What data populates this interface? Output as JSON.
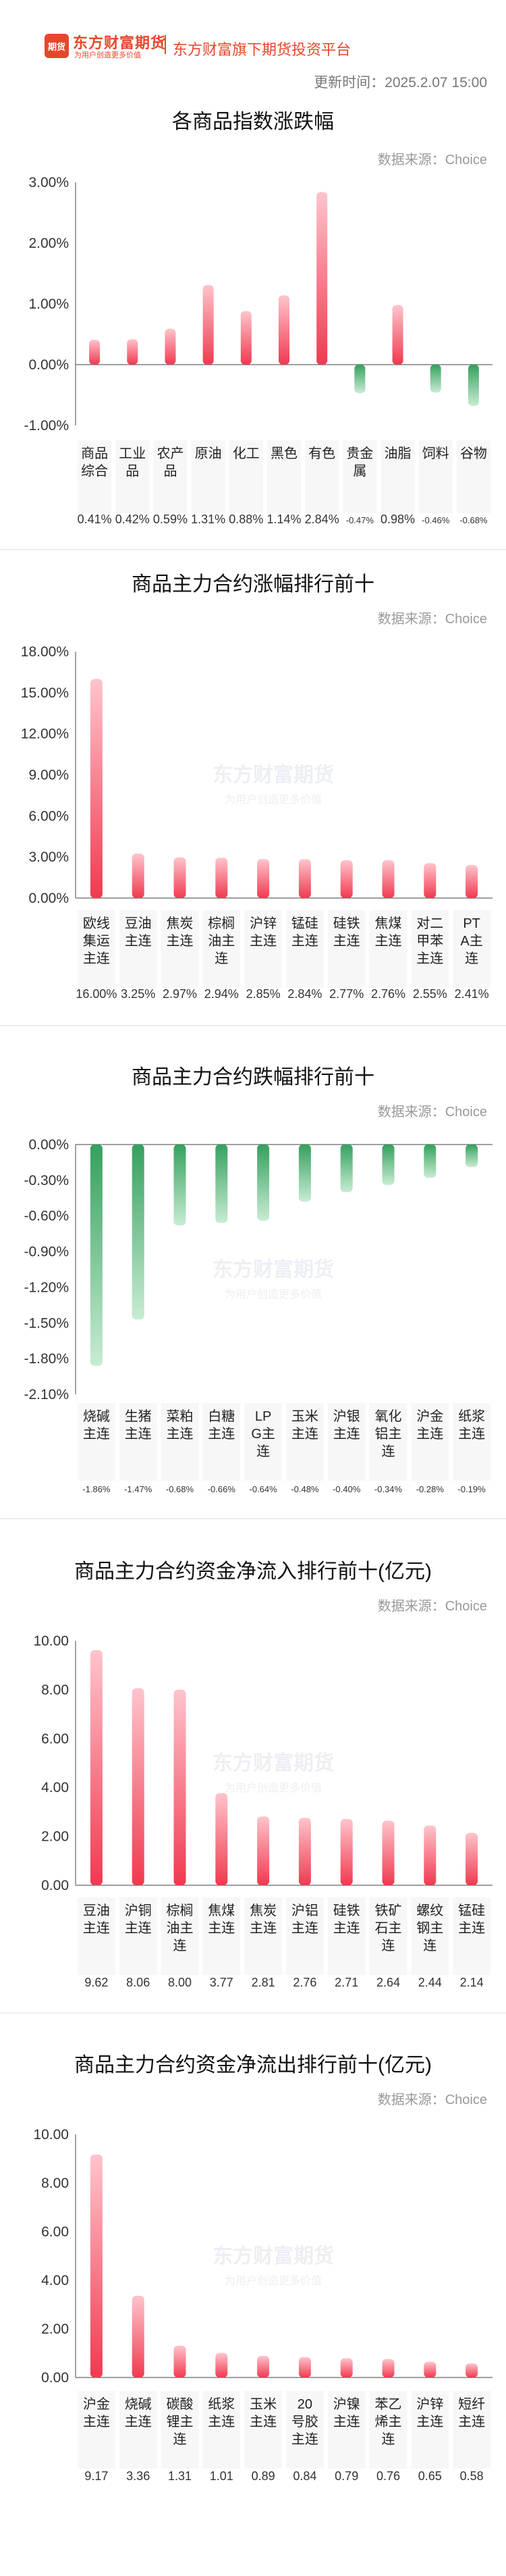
{
  "brand": {
    "logo_text": "期货",
    "name": "东方财富期货",
    "slogan": "为用户创造更多价值",
    "subtitle": "东方财富旗下期货投资平台"
  },
  "update_time": "更新时间：2025.2.07 15:00",
  "source_label": "数据来源：Choice",
  "watermark": {
    "name": "东方财富期货",
    "slogan": "为用户创造更多价值"
  },
  "colors": {
    "positive": "#f04b5c",
    "negative": "#4fb06e",
    "brand": "#e8462c"
  },
  "chart_data": [
    {
      "type": "bar",
      "title": "各商品指数涨跌幅",
      "categories": [
        "商品综合",
        "工业品",
        "农产品",
        "原油",
        "化工",
        "黑色",
        "有色",
        "贵金属",
        "油脂",
        "饲料",
        "谷物"
      ],
      "values": [
        0.41,
        0.42,
        0.59,
        1.31,
        0.88,
        1.14,
        2.84,
        -0.47,
        0.98,
        -0.46,
        -0.68
      ],
      "value_labels": [
        "0.41%",
        "0.42%",
        "0.59%",
        "1.31%",
        "0.88%",
        "1.14%",
        "2.84%",
        "-0.47%",
        "0.98%",
        "-0.46%",
        "-0.68%"
      ],
      "ylim": [
        -1.0,
        3.0
      ],
      "yticks": [
        "3.00%",
        "2.00%",
        "1.00%",
        "0.00%",
        "-1.00%"
      ],
      "grid": false
    },
    {
      "type": "bar",
      "title": "商品主力合约涨幅排行前十",
      "categories": [
        "欧线集运主连",
        "豆油主连",
        "焦炭主连",
        "棕榈油主连",
        "沪锌主连",
        "锰硅主连",
        "硅铁主连",
        "焦煤主连",
        "对二甲苯主连",
        "PTA主连"
      ],
      "values": [
        16.0,
        3.25,
        2.97,
        2.94,
        2.85,
        2.84,
        2.77,
        2.76,
        2.55,
        2.41
      ],
      "value_labels": [
        "16.00%",
        "3.25%",
        "2.97%",
        "2.94%",
        "2.85%",
        "2.84%",
        "2.77%",
        "2.76%",
        "2.55%",
        "2.41%"
      ],
      "ylim": [
        0,
        18
      ],
      "yticks": [
        "18.00%",
        "15.00%",
        "12.00%",
        "9.00%",
        "6.00%",
        "3.00%",
        "0.00%"
      ],
      "grid": false
    },
    {
      "type": "bar",
      "title": "商品主力合约跌幅排行前十",
      "categories": [
        "烧碱主连",
        "生猪主连",
        "菜粕主连",
        "白糖主连",
        "LPG主连",
        "玉米主连",
        "沪银主连",
        "氧化铝主连",
        "沪金主连",
        "纸浆主连"
      ],
      "values": [
        -1.86,
        -1.47,
        -0.68,
        -0.66,
        -0.64,
        -0.48,
        -0.4,
        -0.34,
        -0.28,
        -0.19
      ],
      "value_labels": [
        "-1.86%",
        "-1.47%",
        "-0.68%",
        "-0.66%",
        "-0.64%",
        "-0.48%",
        "-0.40%",
        "-0.34%",
        "-0.28%",
        "-0.19%"
      ],
      "ylim": [
        -2.1,
        0
      ],
      "yticks": [
        "0.00%",
        "-0.30%",
        "-0.60%",
        "-0.90%",
        "-1.20%",
        "-1.50%",
        "-1.80%",
        "-2.10%"
      ],
      "grid": false
    },
    {
      "type": "bar",
      "title": "商品主力合约资金净流入排行前十(亿元)",
      "categories": [
        "豆油主连",
        "沪铜主连",
        "棕榈油主连",
        "焦煤主连",
        "焦炭主连",
        "沪铝主连",
        "硅铁主连",
        "铁矿石主连",
        "螺纹钢主连",
        "锰硅主连"
      ],
      "values": [
        9.62,
        8.06,
        8.0,
        3.77,
        2.81,
        2.76,
        2.71,
        2.64,
        2.44,
        2.14
      ],
      "value_labels": [
        "9.62",
        "8.06",
        "8.00",
        "3.77",
        "2.81",
        "2.76",
        "2.71",
        "2.64",
        "2.44",
        "2.14"
      ],
      "ylim": [
        0,
        10
      ],
      "yticks": [
        "10.00",
        "8.00",
        "6.00",
        "4.00",
        "2.00",
        "0.00"
      ],
      "grid": false
    },
    {
      "type": "bar",
      "title": "商品主力合约资金净流出排行前十(亿元)",
      "categories": [
        "沪金主连",
        "烧碱主连",
        "碳酸锂主连",
        "纸浆主连",
        "玉米主连",
        "20号胶主连",
        "沪镍主连",
        "苯乙烯主连",
        "沪锌主连",
        "短纤主连"
      ],
      "values": [
        9.17,
        3.36,
        1.31,
        1.01,
        0.89,
        0.84,
        0.79,
        0.76,
        0.65,
        0.58
      ],
      "value_labels": [
        "9.17",
        "3.36",
        "1.31",
        "1.01",
        "0.89",
        "0.84",
        "0.79",
        "0.76",
        "0.65",
        "0.58"
      ],
      "ylim": [
        0,
        10
      ],
      "yticks": [
        "10.00",
        "8.00",
        "6.00",
        "4.00",
        "2.00",
        "0.00"
      ],
      "grid": false
    }
  ]
}
